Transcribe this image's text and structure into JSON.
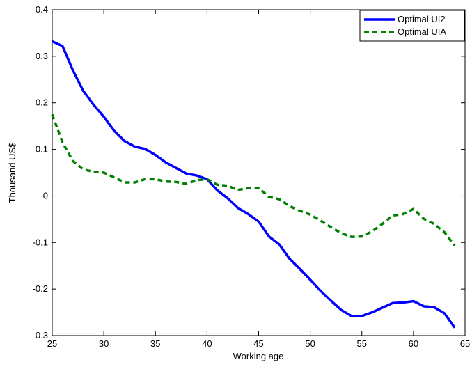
{
  "chart_data": {
    "type": "line",
    "x_label": "Working age",
    "y_label": "Thousand US$",
    "x": [
      25,
      26,
      27,
      28,
      29,
      30,
      31,
      32,
      33,
      34,
      35,
      36,
      37,
      38,
      39,
      40,
      41,
      42,
      43,
      44,
      45,
      46,
      47,
      48,
      49,
      50,
      51,
      52,
      53,
      54,
      55,
      56,
      57,
      58,
      59,
      60,
      61,
      62,
      63,
      64
    ],
    "series": [
      {
        "name": "Optimal UI2",
        "color": "#0000ff",
        "dash": "solid",
        "values": [
          0.332,
          0.322,
          0.27,
          0.226,
          0.196,
          0.17,
          0.14,
          0.118,
          0.106,
          0.101,
          0.088,
          0.072,
          0.06,
          0.048,
          0.044,
          0.036,
          0.012,
          -0.005,
          -0.026,
          -0.039,
          -0.055,
          -0.087,
          -0.104,
          -0.135,
          -0.157,
          -0.18,
          -0.204,
          -0.225,
          -0.245,
          -0.258,
          -0.258,
          -0.25,
          -0.24,
          -0.23,
          -0.229,
          -0.226,
          -0.237,
          -0.239,
          -0.252,
          -0.283
        ]
      },
      {
        "name": "Optimal UIA",
        "color": "#008000",
        "dash": "dashed",
        "values": [
          0.175,
          0.115,
          0.075,
          0.057,
          0.052,
          0.05,
          0.04,
          0.029,
          0.029,
          0.036,
          0.036,
          0.031,
          0.03,
          0.026,
          0.034,
          0.036,
          0.024,
          0.022,
          0.013,
          0.017,
          0.017,
          -0.002,
          -0.007,
          -0.022,
          -0.032,
          -0.04,
          -0.053,
          -0.067,
          -0.08,
          -0.088,
          -0.087,
          -0.076,
          -0.06,
          -0.042,
          -0.039,
          -0.028,
          -0.049,
          -0.06,
          -0.078,
          -0.107
        ]
      }
    ],
    "xlim": [
      25,
      65
    ],
    "xticks": [
      25,
      30,
      35,
      40,
      45,
      50,
      55,
      60,
      65
    ],
    "ylim": [
      -0.3,
      0.4
    ],
    "yticks": [
      -0.3,
      -0.2,
      -0.1,
      0,
      0.1,
      0.2,
      0.3,
      0.4
    ],
    "grid": false,
    "legend": "upper right"
  }
}
